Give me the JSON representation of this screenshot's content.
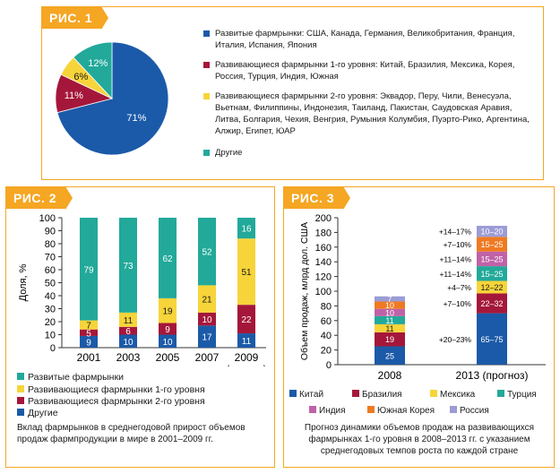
{
  "fig1": {
    "tag": "РИС. 1",
    "colors": [
      "#1b5aa8",
      "#a5173a",
      "#f7d43a",
      "#22a99a"
    ],
    "legend": [
      "Развитые фармрынки: США, Канада, Германия, Великобритания, Франция, Италия, Испания, Япония",
      "Развивающиеся фармрынки 1-го уровня: Китай, Бразилия, Мексика, Корея, Россия, Турция, Индия, Южная",
      "Развивающиеся фармрынки 2-го уровня: Эквадор, Перу, Чили, Венесуэла, Вьетнам, Филиппины, Индонезия, Таиланд, Пакистан, Саудовская Аравия, Литва, Болгария, Чехия, Венгрия, Румыния Колумбия, Пуэрто-Рико, Аргентина, Алжир, Египет, ЮАР",
      "Другие"
    ]
  },
  "fig2": {
    "tag": "РИС. 2",
    "caption": "Вклад фармрынков в среднегодовой прирост объемов продаж фармпродукции в мире в 2001–2009 гг.",
    "forecast_label": "(прогноз)",
    "colors": [
      "#22a99a",
      "#f7d43a",
      "#a5173a",
      "#1b5aa8"
    ],
    "legend": [
      "Развитые фармрынки",
      "Развивающиеся фармрынки 1-го уровня",
      "Развивающиеся фармрынки 2-го уровня",
      "Другие"
    ]
  },
  "fig3": {
    "tag": "РИС. 3",
    "caption": "Прогноз динамики объемов продаж на развивающихся фармрынках 1-го уровня в 2008–2013 гг. с указанием среднегодовых темпов роста по каждой стране",
    "legend_row1": [
      "Китай",
      "Бразилия",
      "Мексика",
      "Турция"
    ],
    "legend_row2": [
      "Индия",
      "Южная Корея",
      "Россия"
    ]
  },
  "chart_data": [
    {
      "type": "pie",
      "labels": [
        "Развитые фармрынки",
        "Развивающиеся фармрынки 1-го уровня",
        "Развивающиеся фармрынки 2-го уровня",
        "Другие"
      ],
      "values": [
        71,
        11,
        6,
        12
      ],
      "value_labels": [
        "71%",
        "11%",
        "6%",
        "12%"
      ],
      "colors": [
        "#1b5aa8",
        "#a5173a",
        "#f7d43a",
        "#22a99a"
      ],
      "legend": "right"
    },
    {
      "type": "bar",
      "stacked": true,
      "categories": [
        "2001",
        "2003",
        "2005",
        "2007",
        "2009"
      ],
      "series": [
        {
          "name": "Другие",
          "values": [
            9,
            10,
            10,
            17,
            11
          ],
          "color": "#1b5aa8"
        },
        {
          "name": "Развивающиеся фармрынки 2-го уровня",
          "values": [
            5,
            6,
            9,
            10,
            22
          ],
          "color": "#a5173a"
        },
        {
          "name": "Развивающиеся фармрынки 1-го уровня",
          "values": [
            7,
            11,
            19,
            21,
            51
          ],
          "color": "#f7d43a"
        },
        {
          "name": "Развитые фармрынки",
          "values": [
            79,
            73,
            62,
            52,
            16
          ],
          "color": "#22a99a"
        }
      ],
      "ylabel": "Доля, %",
      "ylim": [
        0,
        100
      ],
      "yticks": [
        0,
        10,
        20,
        30,
        40,
        50,
        60,
        70,
        80,
        90,
        100
      ],
      "legend": "bottom"
    },
    {
      "type": "bar",
      "stacked": true,
      "categories": [
        "2008",
        "2013 (прогноз)"
      ],
      "series": [
        {
          "name": "Китай",
          "values": [
            25,
            70
          ],
          "labels": [
            "25",
            "65–75"
          ],
          "growth": "+20–23%",
          "color": "#1b5aa8"
        },
        {
          "name": "Бразилия",
          "values": [
            19,
            27
          ],
          "labels": [
            "19",
            "22–32"
          ],
          "growth": "+7–10%",
          "color": "#a5173a"
        },
        {
          "name": "Мексика",
          "values": [
            11,
            17
          ],
          "labels": [
            "11",
            "12–22"
          ],
          "growth": "+4–7%",
          "color": "#f7d43a"
        },
        {
          "name": "Турция",
          "values": [
            11,
            20
          ],
          "labels": [
            "11",
            "15–25"
          ],
          "growth": "+11–14%",
          "color": "#22a99a"
        },
        {
          "name": "Индия",
          "values": [
            10,
            20
          ],
          "labels": [
            "10",
            "15–25"
          ],
          "growth": "+11–14%",
          "color": "#c062a8"
        },
        {
          "name": "Южная Корея",
          "values": [
            10,
            20
          ],
          "labels": [
            "10",
            "15–25"
          ],
          "growth": "+7–10%",
          "color": "#ef7a22"
        },
        {
          "name": "Россия",
          "values": [
            7,
            15
          ],
          "labels": [
            "7",
            "10–20"
          ],
          "growth": "+14–17%",
          "color": "#9c9cd6"
        }
      ],
      "ylabel": "Объем продаж, млрд дол. США",
      "ylim": [
        0,
        200
      ],
      "yticks": [
        0,
        20,
        40,
        60,
        80,
        100,
        120,
        140,
        160,
        180,
        200
      ],
      "legend": "bottom"
    }
  ]
}
